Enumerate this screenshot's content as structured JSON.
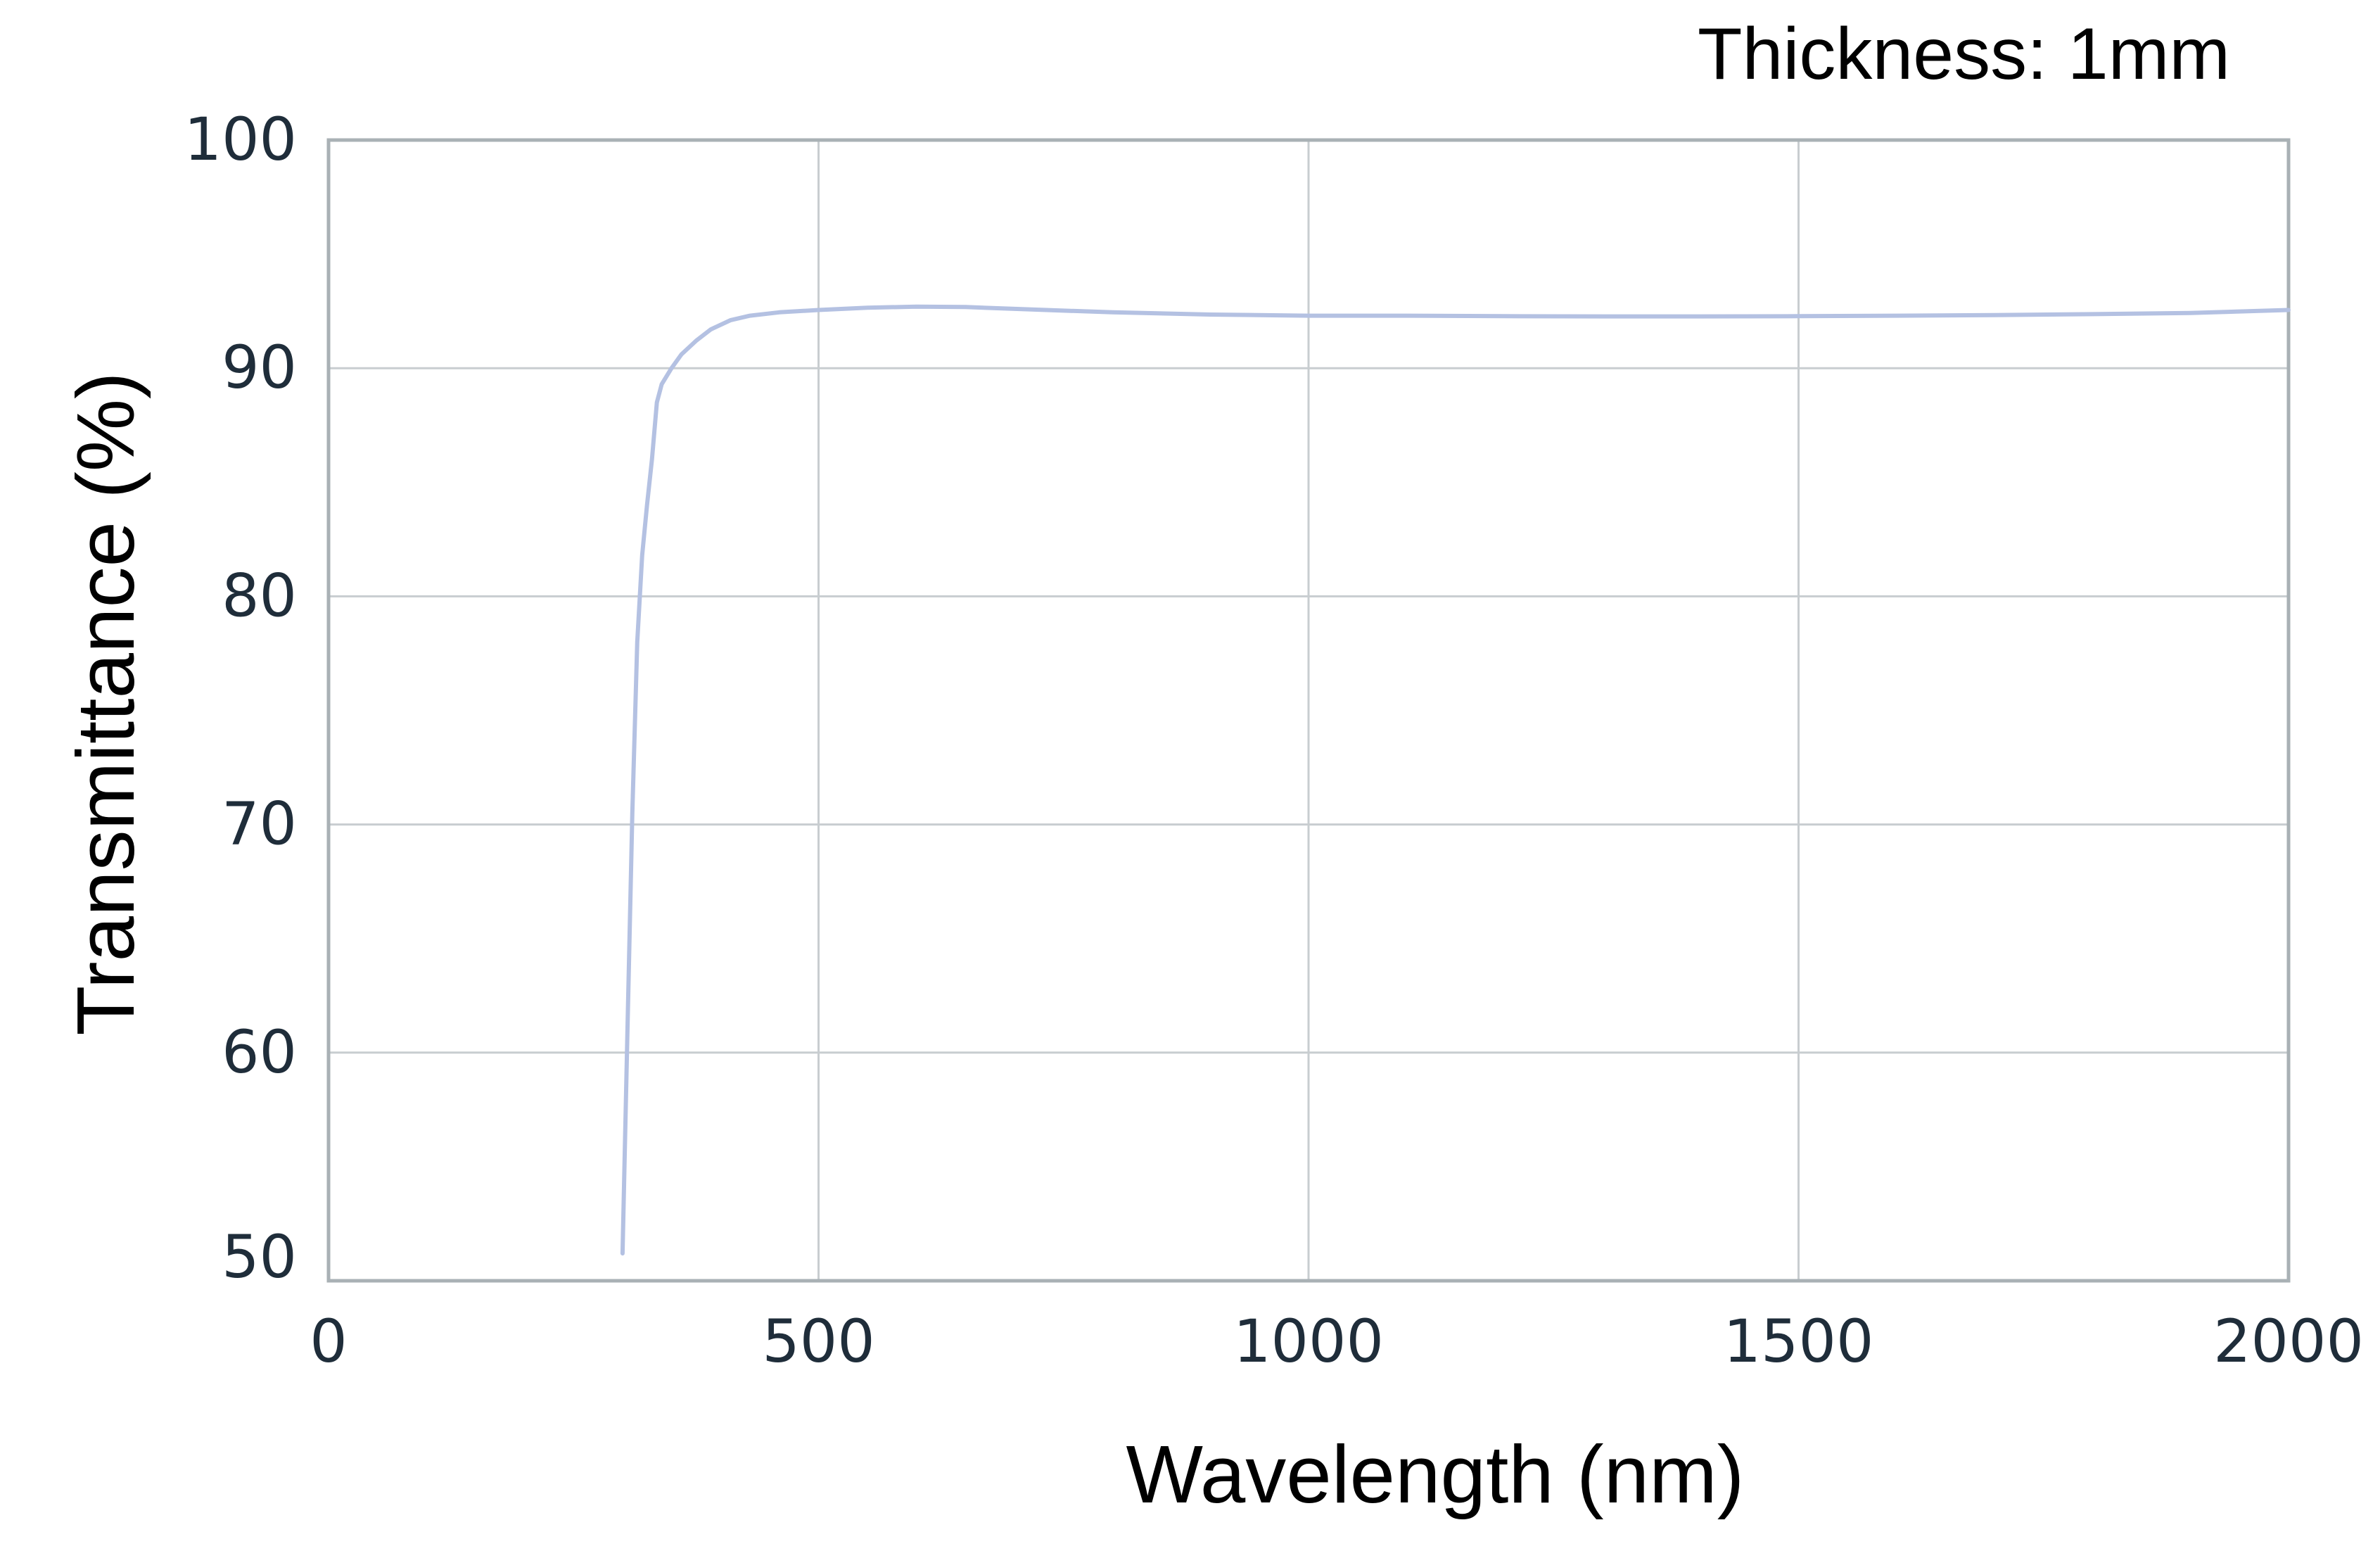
{
  "annotation": "Thickness: 1mm",
  "chart_data": {
    "type": "line",
    "title": "",
    "xlabel": "Wavelength (nm)",
    "ylabel": "Transmittance (%)",
    "xlim": [
      0,
      2000
    ],
    "ylim": [
      50,
      100
    ],
    "xticks": [
      0,
      500,
      1000,
      1500,
      2000
    ],
    "yticks": [
      50,
      60,
      70,
      80,
      90,
      100
    ],
    "grid": true,
    "legend": "none",
    "series": [
      {
        "color": "#b4c1e2",
        "x": [
          300,
          305,
          310,
          315,
          320,
          325,
          330,
          335,
          340,
          350,
          360,
          375,
          390,
          410,
          430,
          460,
          500,
          550,
          600,
          650,
          700,
          800,
          900,
          1000,
          1100,
          1200,
          1300,
          1400,
          1500,
          1600,
          1700,
          1800,
          1900,
          2000
        ],
        "y": [
          51.2,
          61.0,
          70.5,
          78.0,
          81.8,
          84.0,
          86.0,
          88.5,
          89.3,
          90.0,
          90.6,
          91.2,
          91.7,
          92.1,
          92.3,
          92.45,
          92.55,
          92.65,
          92.7,
          92.68,
          92.6,
          92.45,
          92.35,
          92.3,
          92.3,
          92.28,
          92.27,
          92.27,
          92.28,
          92.3,
          92.33,
          92.37,
          92.42,
          92.55
        ]
      }
    ]
  }
}
